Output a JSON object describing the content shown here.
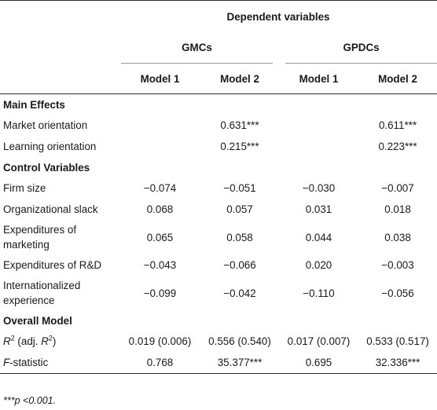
{
  "header": {
    "group_title": "Dependent variables",
    "groups": [
      "GMCs",
      "GPDCs"
    ],
    "models": [
      "Model 1",
      "Model 2",
      "Model 1",
      "Model 2"
    ]
  },
  "sections": [
    {
      "title": "Main Effects",
      "rows": [
        {
          "label": "Market orientation",
          "values": [
            "",
            "0.631***",
            "",
            "0.611***"
          ]
        },
        {
          "label": "Learning orientation",
          "values": [
            "",
            "0.215***",
            "",
            "0.223***"
          ]
        }
      ]
    },
    {
      "title": "Control Variables",
      "rows": [
        {
          "label": "Firm size",
          "values": [
            "−0.074",
            "−0.051",
            "−0.030",
            "−0.007"
          ]
        },
        {
          "label": "Organizational slack",
          "values": [
            "0.068",
            "0.057",
            "0.031",
            "0.018"
          ]
        },
        {
          "label": "Expenditures of marketing",
          "values": [
            "0.065",
            "0.058",
            "0.044",
            "0.038"
          ]
        },
        {
          "label": "Expenditures of R&D",
          "values": [
            "−0.043",
            "−0.066",
            "0.020",
            "−0.003"
          ]
        },
        {
          "label": "Internationalized experience",
          "values": [
            "−0.099",
            "−0.042",
            "−0.110",
            "−0.056"
          ]
        }
      ]
    },
    {
      "title": "Overall Model",
      "rows": [
        {
          "label_parts": [
            "R",
            "2",
            " (adj. ",
            "R",
            "2",
            ")"
          ],
          "values": [
            "0.019 (0.006)",
            "0.556 (0.540)",
            "0.017 (0.007)",
            "0.533 (0.517)"
          ]
        },
        {
          "label_parts": [
            "F",
            "-statistic"
          ],
          "values": [
            "0.768",
            "35.377***",
            "0.695",
            "32.336***"
          ]
        }
      ]
    }
  ],
  "footnote": "***p <0.001."
}
